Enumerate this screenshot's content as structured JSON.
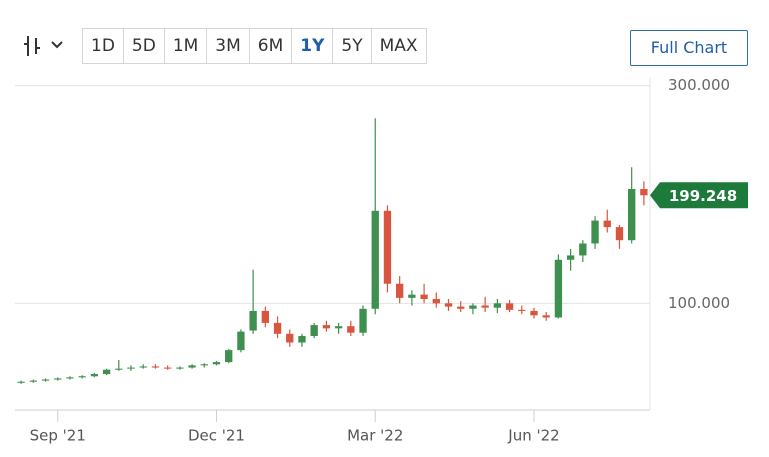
{
  "toolbar": {
    "ranges": [
      "1D",
      "5D",
      "1M",
      "3M",
      "6M",
      "1Y",
      "5Y",
      "MAX"
    ],
    "selected": "1Y",
    "full_chart": "Full Chart"
  },
  "chart_data": {
    "type": "candlestick",
    "categories": [
      null,
      null,
      null,
      "Sep '21",
      null,
      null,
      null,
      null,
      null,
      null,
      null,
      null,
      null,
      null,
      null,
      null,
      "Dec '21",
      null,
      null,
      null,
      null,
      null,
      null,
      null,
      null,
      null,
      null,
      null,
      null,
      "Mar '22",
      null,
      null,
      null,
      null,
      null,
      null,
      null,
      null,
      null,
      null,
      null,
      null,
      "Jun '22",
      null,
      null,
      null,
      null,
      null,
      null,
      null,
      null,
      null
    ],
    "open": [
      27,
      28,
      29,
      30,
      31,
      32,
      33,
      35,
      39,
      40,
      41,
      42,
      41,
      40,
      41,
      43,
      44,
      46,
      57,
      75,
      93,
      82,
      72,
      64,
      70,
      80,
      77,
      79,
      73,
      95,
      185,
      118,
      105,
      108,
      104,
      100,
      97,
      95,
      98,
      96,
      100,
      94,
      93,
      89,
      87,
      140,
      144,
      155,
      176,
      170,
      158,
      205
    ],
    "high": [
      29,
      30,
      31,
      32,
      33,
      34,
      36,
      40,
      48,
      43,
      44,
      44,
      43,
      42,
      44,
      45,
      47,
      58,
      76,
      131,
      97,
      88,
      76,
      72,
      82,
      84,
      82,
      84,
      98,
      270,
      190,
      125,
      112,
      118,
      110,
      104,
      102,
      100,
      106,
      104,
      103,
      98,
      96,
      92,
      145,
      150,
      158,
      180,
      186,
      172,
      225,
      212
    ],
    "low": [
      26,
      27,
      28,
      29,
      30,
      31,
      32,
      34,
      38,
      38,
      40,
      40,
      39,
      39,
      40,
      41,
      43,
      45,
      55,
      72,
      78,
      68,
      60,
      60,
      68,
      74,
      72,
      70,
      70,
      90,
      110,
      100,
      98,
      100,
      96,
      93,
      92,
      90,
      92,
      91,
      92,
      90,
      86,
      84,
      86,
      130,
      138,
      150,
      165,
      150,
      155,
      190
    ],
    "close": [
      28,
      29,
      30,
      31,
      32,
      33,
      35,
      39,
      40,
      41,
      42,
      41,
      40,
      41,
      43,
      44,
      46,
      57,
      74,
      93,
      82,
      72,
      64,
      70,
      80,
      77,
      79,
      73,
      95,
      185,
      118,
      105,
      108,
      104,
      100,
      97,
      95,
      98,
      96,
      100,
      94,
      93,
      89,
      87,
      140,
      144,
      155,
      176,
      170,
      158,
      205,
      199.248
    ],
    "up_color": "#3f8f4e",
    "down_color": "#d9553f",
    "badge_color": "#1d7a3b",
    "ylim": [
      2,
      307
    ],
    "yticks": [
      {
        "value": 100,
        "label": "100.000"
      },
      {
        "value": 300,
        "label": "300.000"
      }
    ],
    "grid": true
  }
}
